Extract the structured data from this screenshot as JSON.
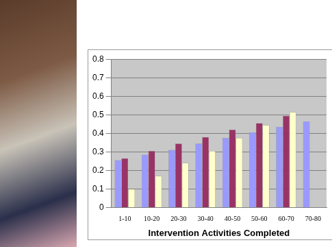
{
  "chart_data": {
    "type": "bar",
    "x_label": "Intervention Activities Completed",
    "categories": [
      "1-10",
      "10-20",
      "20-30",
      "30-40",
      "40-50",
      "50-60",
      "60-70",
      "70-80"
    ],
    "series": [
      {
        "color": "#9999ff",
        "values": [
          0.255,
          0.285,
          0.31,
          0.345,
          0.375,
          0.405,
          0.435,
          0.465
        ]
      },
      {
        "color": "#993366",
        "values": [
          0.265,
          0.305,
          0.345,
          0.38,
          0.42,
          0.455,
          0.495,
          null
        ]
      },
      {
        "color": "#ffffcc",
        "values": [
          0.1,
          0.17,
          0.24,
          0.305,
          0.375,
          0.445,
          0.515,
          null
        ]
      }
    ],
    "ylim": [
      0,
      0.8
    ],
    "yticks": [
      0,
      0.1,
      0.2,
      0.3,
      0.4,
      0.5,
      0.6,
      0.7,
      0.8
    ],
    "grid": true
  }
}
